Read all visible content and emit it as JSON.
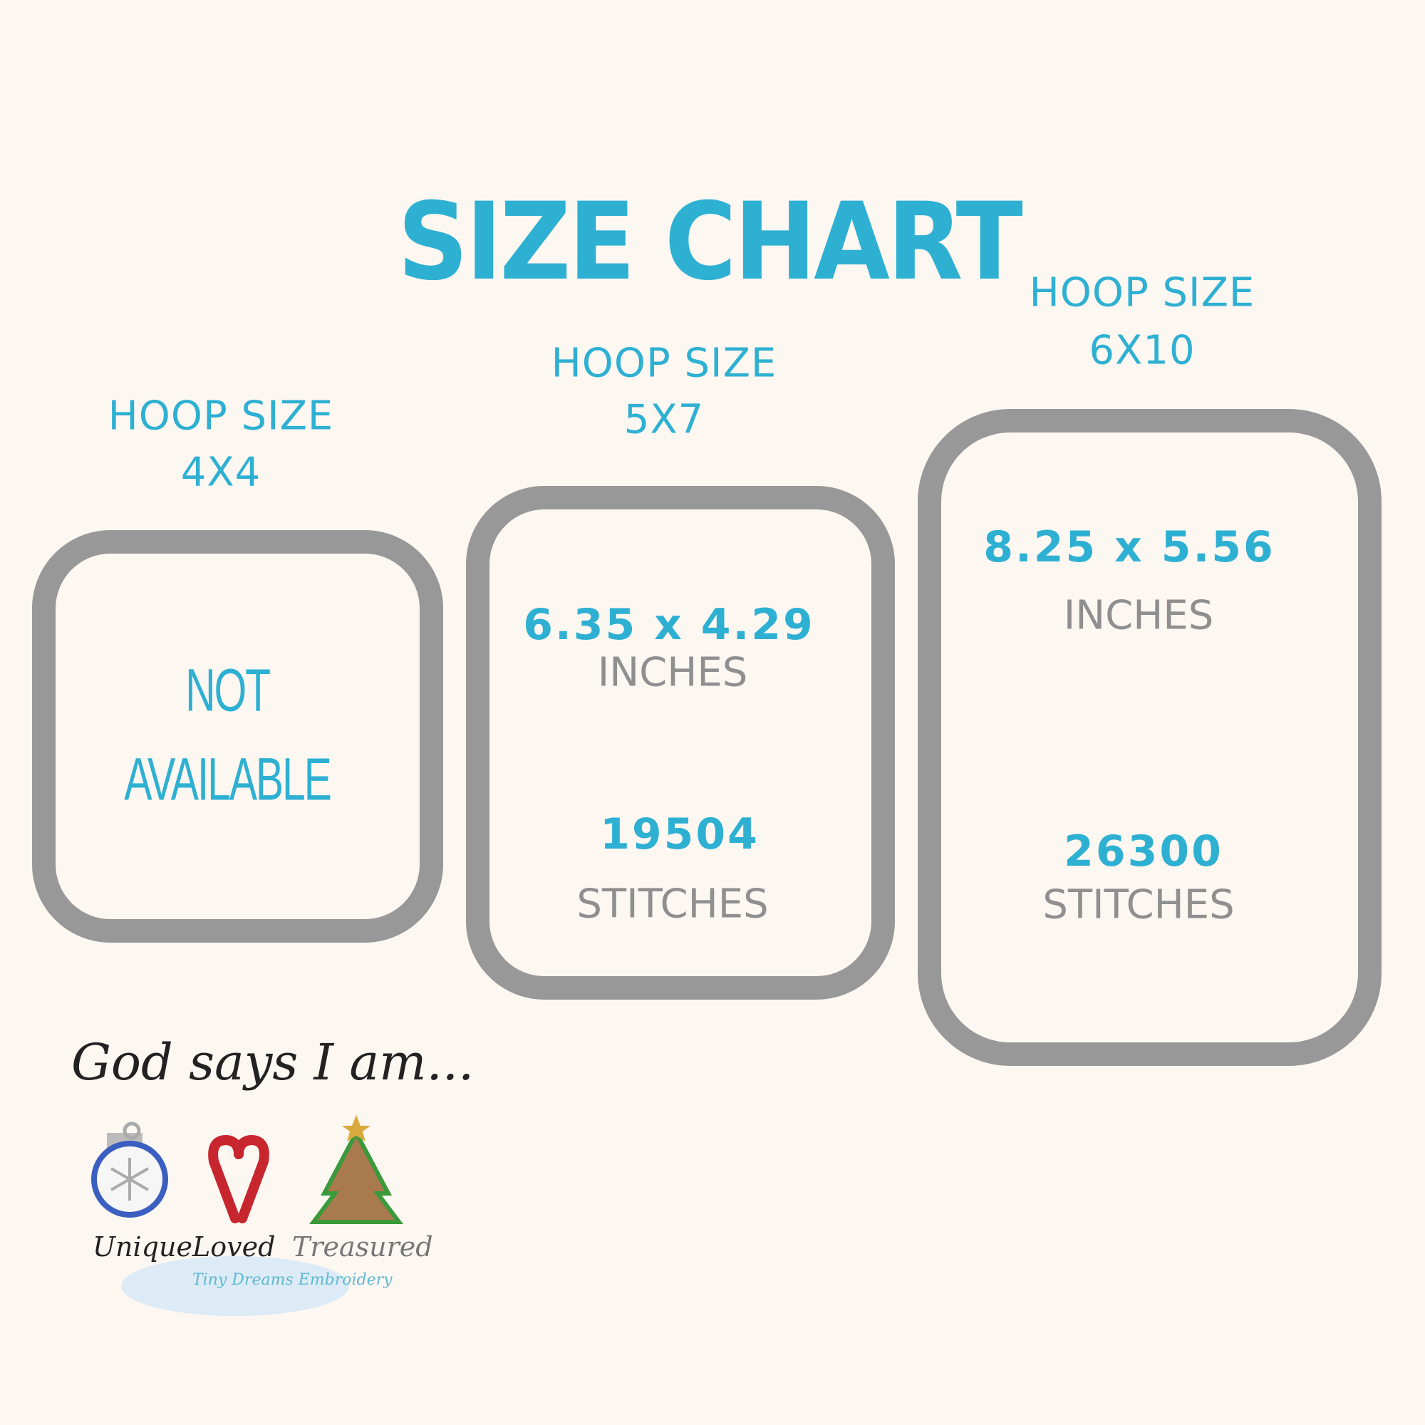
{
  "title": "SIZE CHART",
  "colors": {
    "accent": "#2eb0d2",
    "frame": "#989898",
    "secondary_text": "#8f8f8f",
    "background": "#fdf7f2"
  },
  "hoops": [
    {
      "label": "HOOP SIZE",
      "size": "4X4",
      "line1": "NOT",
      "line2": "AVAILABLE"
    },
    {
      "label": "HOOP SIZE",
      "size": "5X7",
      "dimensions": "6.35 x 4.29",
      "dimensions_unit": "INCHES",
      "stitches": "19504",
      "stitches_unit": "STITCHES"
    },
    {
      "label": "HOOP SIZE",
      "size": "6X10",
      "dimensions": "8.25 x 5.56",
      "dimensions_unit": "INCHES",
      "stitches": "26300",
      "stitches_unit": "STITCHES"
    }
  ],
  "logo": {
    "headline": "God says I am...",
    "words": [
      "Unique",
      "Loved",
      "Treasured"
    ],
    "watermark": "Tiny Dreams Embroidery",
    "icons": [
      "ornament-icon",
      "candy-cane-heart-icon",
      "christmas-tree-icon"
    ]
  }
}
